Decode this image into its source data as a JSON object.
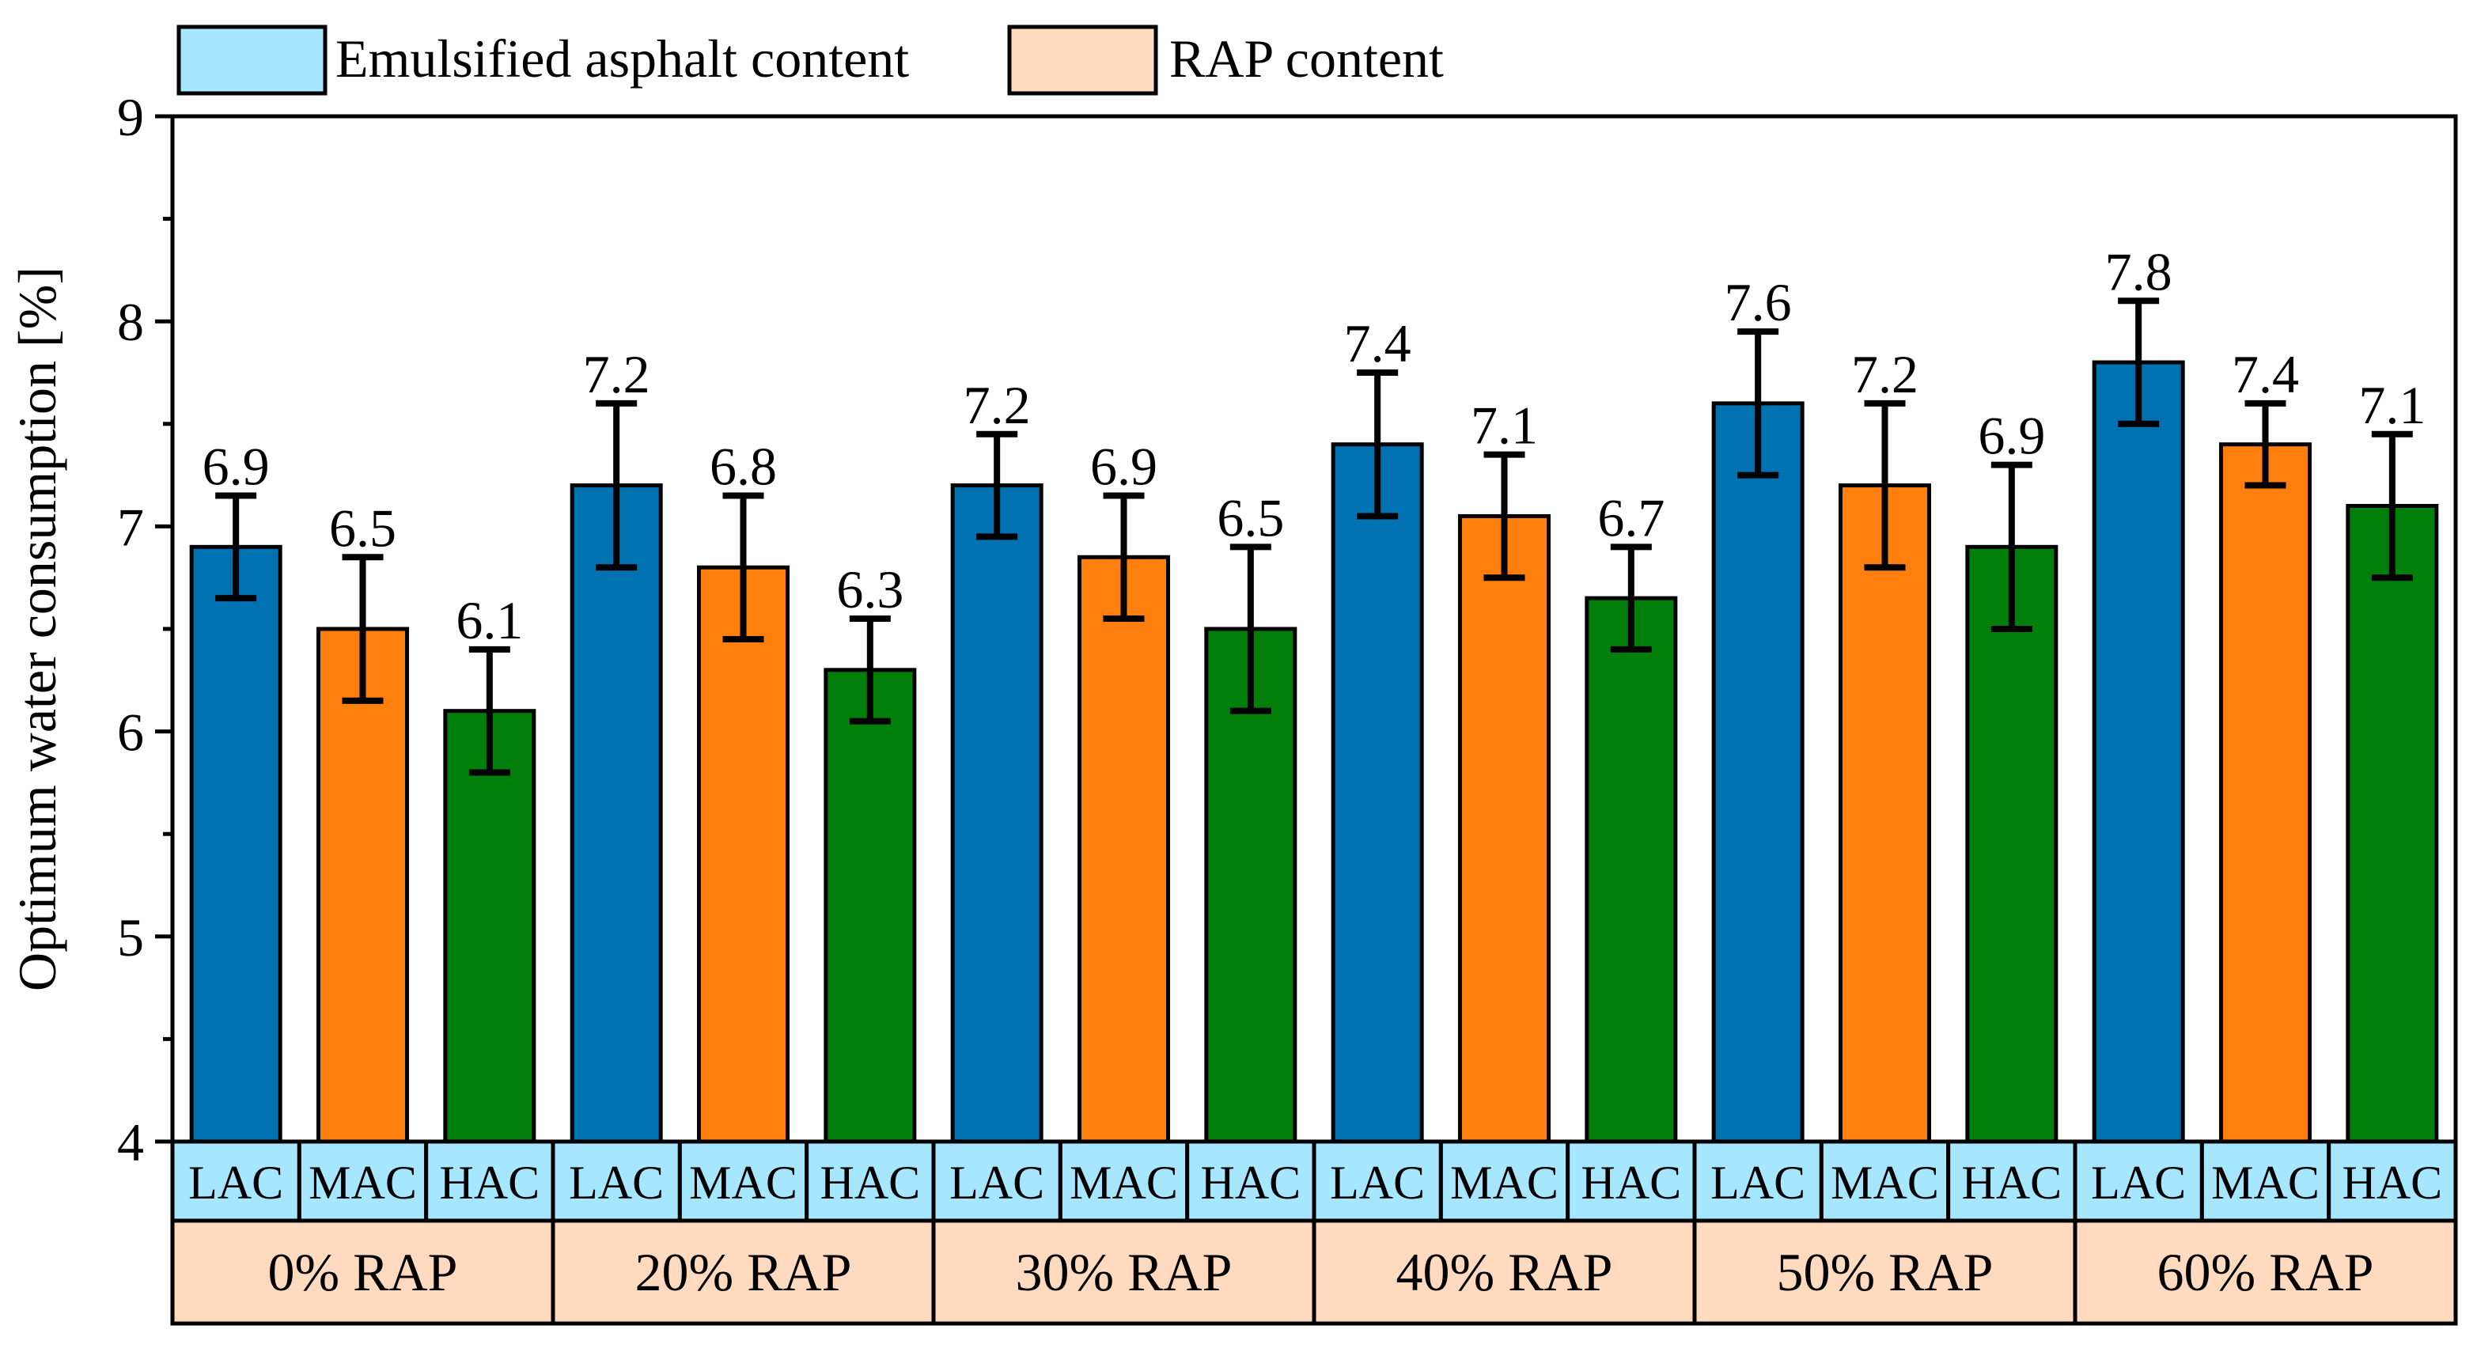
{
  "chart_data": {
    "type": "bar",
    "title": "",
    "ylabel": "Optimum water consumption [%]",
    "xlabel": "",
    "ylim": [
      4,
      9
    ],
    "yticks": [
      4,
      5,
      6,
      7,
      8,
      9
    ],
    "grid": false,
    "legend_position": "top-left",
    "legend": [
      {
        "label": "Emulsified asphalt content",
        "color": "#a6e6ff"
      },
      {
        "label": "RAP content",
        "color": "#ffdabf"
      }
    ],
    "subcategory_colors": {
      "LAC": "#0072b2",
      "MAC": "#ff7f0e",
      "HAC": "#00800a"
    },
    "row1_color": "#a6e6ff",
    "row2_color": "#ffdabf",
    "groups": [
      {
        "label": "0% RAP",
        "bars": [
          {
            "cat": "LAC",
            "value": 6.9,
            "label": "6.9",
            "err_low": 6.65,
            "err_high": 7.15
          },
          {
            "cat": "MAC",
            "value": 6.5,
            "label": "6.5",
            "err_low": 6.15,
            "err_high": 6.85
          },
          {
            "cat": "HAC",
            "value": 6.1,
            "label": "6.1",
            "err_low": 5.8,
            "err_high": 6.4
          }
        ]
      },
      {
        "label": "20% RAP",
        "bars": [
          {
            "cat": "LAC",
            "value": 7.2,
            "label": "7.2",
            "err_low": 6.8,
            "err_high": 7.6
          },
          {
            "cat": "MAC",
            "value": 6.8,
            "label": "6.8",
            "err_low": 6.45,
            "err_high": 7.15
          },
          {
            "cat": "HAC",
            "value": 6.3,
            "label": "6.3",
            "err_low": 6.05,
            "err_high": 6.55
          }
        ]
      },
      {
        "label": "30% RAP",
        "bars": [
          {
            "cat": "LAC",
            "value": 7.2,
            "label": "7.2",
            "err_low": 6.95,
            "err_high": 7.45
          },
          {
            "cat": "MAC",
            "value": 6.85,
            "label": "6.9",
            "err_low": 6.55,
            "err_high": 7.15
          },
          {
            "cat": "HAC",
            "value": 6.5,
            "label": "6.5",
            "err_low": 6.1,
            "err_high": 6.9
          }
        ]
      },
      {
        "label": "40% RAP",
        "bars": [
          {
            "cat": "LAC",
            "value": 7.4,
            "label": "7.4",
            "err_low": 7.05,
            "err_high": 7.75
          },
          {
            "cat": "MAC",
            "value": 7.05,
            "label": "7.1",
            "err_low": 6.75,
            "err_high": 7.35
          },
          {
            "cat": "HAC",
            "value": 6.65,
            "label": "6.7",
            "err_low": 6.4,
            "err_high": 6.9
          }
        ]
      },
      {
        "label": "50% RAP",
        "bars": [
          {
            "cat": "LAC",
            "value": 7.6,
            "label": "7.6",
            "err_low": 7.25,
            "err_high": 7.95
          },
          {
            "cat": "MAC",
            "value": 7.2,
            "label": "7.2",
            "err_low": 6.8,
            "err_high": 7.6
          },
          {
            "cat": "HAC",
            "value": 6.9,
            "label": "6.9",
            "err_low": 6.5,
            "err_high": 7.3
          }
        ]
      },
      {
        "label": "60% RAP",
        "bars": [
          {
            "cat": "LAC",
            "value": 7.8,
            "label": "7.8",
            "err_low": 7.5,
            "err_high": 8.1
          },
          {
            "cat": "MAC",
            "value": 7.4,
            "label": "7.4",
            "err_low": 7.2,
            "err_high": 7.6
          },
          {
            "cat": "HAC",
            "value": 7.1,
            "label": "7.1",
            "err_low": 6.75,
            "err_high": 7.45
          }
        ]
      }
    ]
  }
}
